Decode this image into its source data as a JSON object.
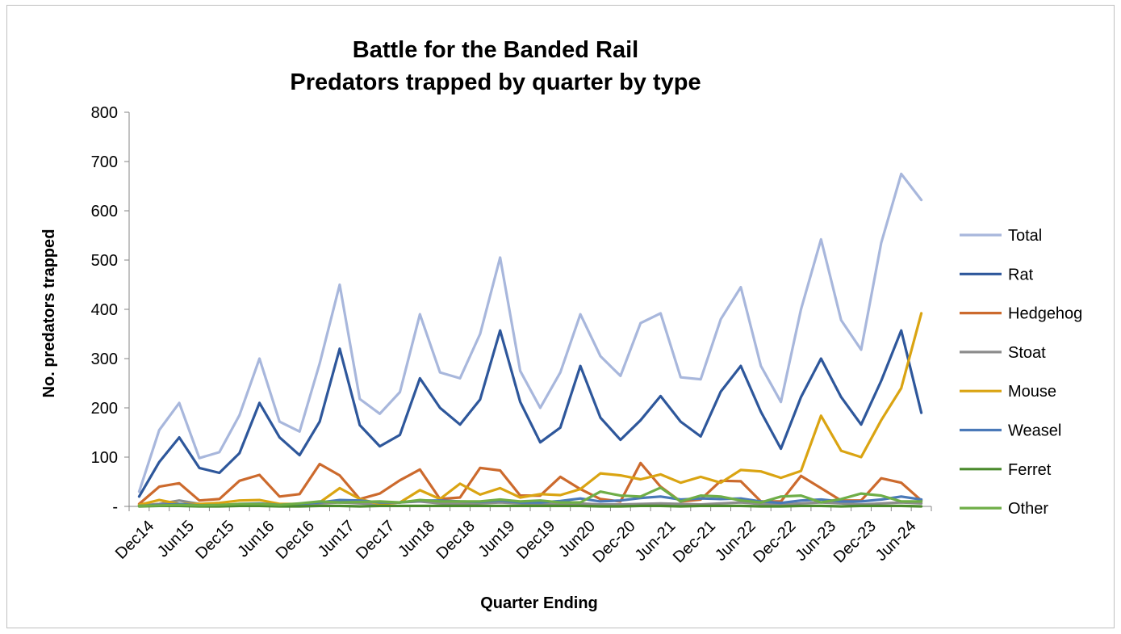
{
  "chart_data": {
    "type": "line",
    "title": "Battle for the Banded Rail",
    "subtitle": "Predators trapped by quarter by type",
    "xlabel": "Quarter Ending",
    "ylabel": "No. predators trapped",
    "ylim": [
      0,
      800
    ],
    "y_ticks": [
      0,
      100,
      200,
      300,
      400,
      500,
      600,
      700,
      800
    ],
    "y_tick_labels": [
      "-",
      "100",
      "200",
      "300",
      "400",
      "500",
      "600",
      "700",
      "800"
    ],
    "x_tick_labels": [
      "Dec14",
      "Jun15",
      "Dec15",
      "Jun16",
      "Dec16",
      "Jun17",
      "Dec17",
      "Jun18",
      "Dec18",
      "Jun19",
      "Dec19",
      "Jun20",
      "Dec-20",
      "Jun-21",
      "Dec-21",
      "Jun-22",
      "Dec-22",
      "Jun-23",
      "Dec-23",
      "Jun-24"
    ],
    "x_tick_every": 2,
    "grid": false,
    "legend_position": "right",
    "series": [
      {
        "name": "Total",
        "color": "#a8b7dc",
        "values": [
          30,
          155,
          210,
          98,
          110,
          185,
          300,
          172,
          152,
          290,
          450,
          218,
          188,
          232,
          390,
          272,
          260,
          350,
          505,
          275,
          200,
          272,
          390,
          305,
          265,
          372,
          392,
          262,
          258,
          380,
          445,
          285,
          212,
          400,
          542,
          378,
          318,
          535,
          675,
          622
        ]
      },
      {
        "name": "Rat",
        "color": "#2e579b",
        "values": [
          20,
          90,
          140,
          78,
          68,
          108,
          210,
          140,
          104,
          172,
          320,
          165,
          122,
          145,
          260,
          200,
          166,
          217,
          357,
          212,
          130,
          160,
          285,
          180,
          135,
          175,
          224,
          172,
          142,
          233,
          285,
          192,
          117,
          222,
          300,
          222,
          166,
          255,
          357,
          190
        ]
      },
      {
        "name": "Hedgehog",
        "color": "#cc6a2d",
        "values": [
          5,
          40,
          47,
          12,
          15,
          52,
          64,
          20,
          25,
          86,
          63,
          15,
          26,
          53,
          75,
          15,
          18,
          78,
          73,
          22,
          22,
          60,
          35,
          15,
          10,
          88,
          40,
          10,
          14,
          52,
          51,
          10,
          10,
          62,
          37,
          12,
          12,
          57,
          48,
          12
        ]
      },
      {
        "name": "Stoat",
        "color": "#8c8c8c",
        "values": [
          2,
          5,
          12,
          5,
          3,
          4,
          5,
          3,
          4,
          6,
          8,
          6,
          5,
          8,
          10,
          6,
          5,
          6,
          8,
          6,
          4,
          5,
          6,
          4,
          4,
          5,
          6,
          5,
          4,
          6,
          8,
          5,
          4,
          6,
          8,
          6,
          4,
          6,
          8,
          6
        ]
      },
      {
        "name": "Mouse",
        "color": "#daa412",
        "values": [
          3,
          13,
          5,
          5,
          7,
          12,
          13,
          5,
          5,
          8,
          37,
          15,
          5,
          8,
          33,
          15,
          46,
          24,
          37,
          18,
          25,
          23,
          35,
          67,
          63,
          55,
          65,
          48,
          60,
          48,
          74,
          71,
          58,
          72,
          184,
          113,
          100,
          175,
          240,
          392
        ]
      },
      {
        "name": "Weasel",
        "color": "#4a79b8",
        "values": [
          1,
          3,
          5,
          2,
          2,
          5,
          6,
          3,
          5,
          8,
          13,
          12,
          8,
          8,
          12,
          12,
          10,
          9,
          12,
          8,
          8,
          11,
          16,
          10,
          12,
          17,
          20,
          14,
          16,
          15,
          16,
          10,
          7,
          12,
          14,
          10,
          10,
          14,
          20,
          14
        ]
      },
      {
        "name": "Ferret",
        "color": "#4a8a2c",
        "values": [
          0,
          1,
          1,
          0,
          0,
          1,
          1,
          0,
          0,
          1,
          1,
          0,
          1,
          1,
          1,
          1,
          1,
          1,
          1,
          1,
          1,
          1,
          1,
          0,
          0,
          1,
          1,
          0,
          1,
          1,
          1,
          0,
          0,
          1,
          1,
          0,
          1,
          1,
          1,
          0
        ]
      },
      {
        "name": "Other",
        "color": "#6fae47",
        "values": [
          1,
          2,
          3,
          2,
          3,
          5,
          5,
          3,
          6,
          10,
          8,
          9,
          10,
          8,
          13,
          10,
          10,
          10,
          14,
          10,
          12,
          8,
          8,
          30,
          22,
          20,
          38,
          10,
          22,
          20,
          12,
          8,
          20,
          22,
          8,
          15,
          26,
          22,
          10,
          10
        ]
      }
    ]
  }
}
